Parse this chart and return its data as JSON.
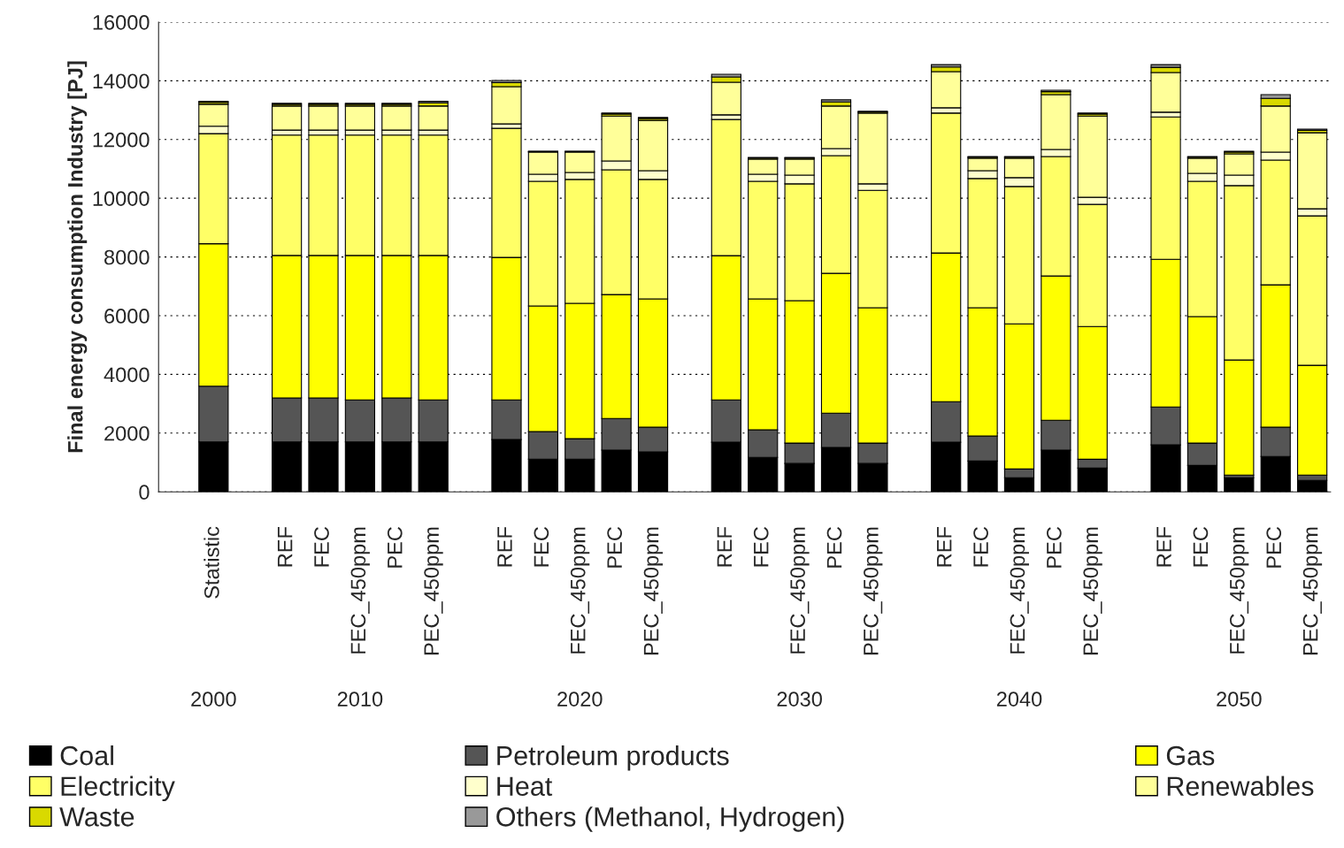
{
  "chart_data": {
    "type": "bar",
    "stacked": true,
    "ylabel": "Final energy consumption Industry [PJ]",
    "categories": [
      null,
      "Statistic",
      null,
      "REF",
      "FEC",
      "FEC_450ppm",
      "PEC",
      "PEC_450ppm",
      null,
      "REF",
      "FEC",
      "FEC_450ppm",
      "PEC",
      "PEC_450ppm",
      null,
      "REF",
      "FEC",
      "FEC_450ppm",
      "PEC",
      "PEC_450ppm",
      null,
      "REF",
      "FEC",
      "FEC_450ppm",
      "PEC",
      "PEC_450ppm",
      null,
      "REF",
      "FEC",
      "FEC_450ppm",
      "PEC",
      "PEC_450ppm"
    ],
    "series": [
      {
        "name": "Coal",
        "color": "#000000",
        "values": [
          null,
          1700,
          null,
          1700,
          1700,
          1700,
          1700,
          1700,
          null,
          1780,
          1115,
          1115,
          1420,
          1360,
          null,
          1690,
          1175,
          965,
          1510,
          965,
          null,
          1690,
          1050,
          480,
          1420,
          810,
          null,
          1600,
          900,
          480,
          1205,
          390
        ]
      },
      {
        "name": "Petroleum products",
        "color": "#555555",
        "values": [
          null,
          1900,
          null,
          1500,
          1500,
          1430,
          1500,
          1430,
          null,
          1350,
          935,
          695,
          1080,
          840,
          null,
          1440,
          935,
          695,
          1170,
          695,
          null,
          1380,
          850,
          300,
          1020,
          300,
          null,
          1290,
          760,
          90,
          995,
          180
        ]
      },
      {
        "name": "Gas",
        "color": "#ffff00",
        "values": [
          null,
          4850,
          null,
          4850,
          4850,
          4920,
          4850,
          4920,
          null,
          4855,
          4280,
          4610,
          4220,
          4370,
          null,
          4915,
          4460,
          4850,
          4760,
          4610,
          null,
          5065,
          4370,
          4940,
          4910,
          4520,
          null,
          5030,
          4310,
          3920,
          4850,
          3740
        ]
      },
      {
        "name": "Electricity",
        "color": "#ffff66",
        "values": [
          null,
          3750,
          null,
          4100,
          4100,
          4100,
          4100,
          4100,
          null,
          4395,
          4246,
          4220,
          4250,
          4070,
          null,
          4635,
          4006,
          3980,
          4010,
          4000,
          null,
          4765,
          4400,
          4680,
          4070,
          4160,
          null,
          4850,
          4606,
          5940,
          4250,
          5090
        ]
      },
      {
        "name": "Heat",
        "color": "#ffffcc",
        "values": [
          null,
          250,
          null,
          170,
          170,
          170,
          170,
          170,
          null,
          150,
          244,
          240,
          300,
          300,
          null,
          160,
          244,
          300,
          240,
          220,
          null,
          180,
          270,
          300,
          240,
          240,
          null,
          160,
          274,
          360,
          270,
          240
        ]
      },
      {
        "name": "Renewables",
        "color": "#ffff99",
        "values": [
          null,
          750,
          null,
          820,
          820,
          820,
          820,
          820,
          null,
          1270,
          750,
          690,
          1530,
          1710,
          null,
          1110,
          510,
          540,
          1450,
          2410,
          null,
          1230,
          420,
          660,
          1870,
          2770,
          null,
          1350,
          510,
          720,
          1570,
          2590
        ]
      },
      {
        "name": "Waste",
        "color": "#d9d900",
        "values": [
          null,
          70,
          null,
          60,
          60,
          60,
          60,
          110,
          null,
          140,
          20,
          20,
          70,
          70,
          null,
          180,
          40,
          40,
          140,
          40,
          null,
          160,
          40,
          40,
          100,
          70,
          null,
          180,
          40,
          60,
          260,
          80
        ]
      },
      {
        "name": "Others (Methanol, Hydrogen)",
        "color": "#999999",
        "values": [
          null,
          30,
          null,
          30,
          30,
          30,
          30,
          50,
          null,
          70,
          10,
          10,
          30,
          30,
          null,
          90,
          20,
          20,
          70,
          20,
          null,
          80,
          20,
          20,
          50,
          30,
          null,
          90,
          20,
          30,
          130,
          40
        ]
      }
    ],
    "ylim": [
      0,
      16000
    ],
    "yticks": [
      0,
      2000,
      4000,
      6000,
      8000,
      10000,
      12000,
      14000,
      16000
    ],
    "grid": "y",
    "legend": "bottom",
    "annotations": [
      "2000",
      "2010",
      "2020",
      "2030",
      "2040",
      "2050"
    ]
  }
}
